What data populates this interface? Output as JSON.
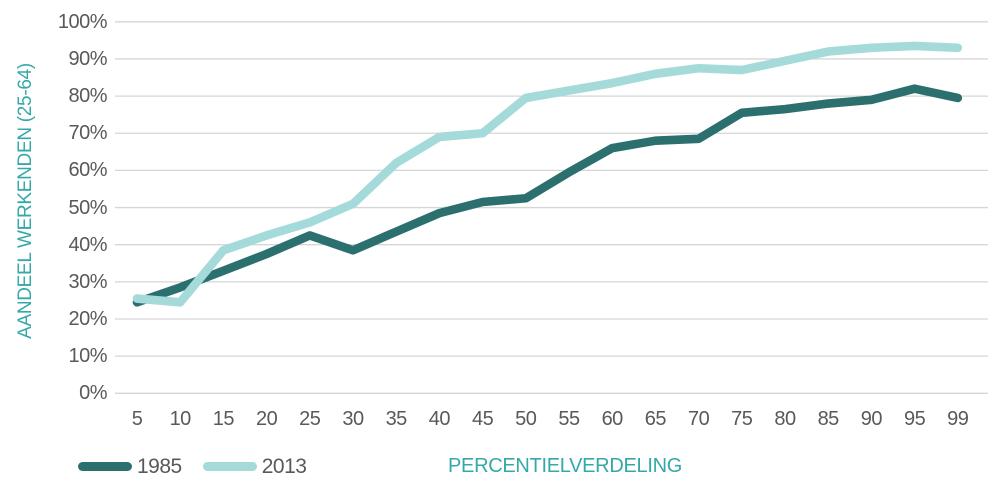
{
  "chart_data": {
    "type": "line",
    "title": "",
    "xlabel": "PERCENTIELVERDELING",
    "ylabel": "AANDEEL WERKENDEN (25-64)",
    "categories": [
      "5",
      "10",
      "15",
      "20",
      "25",
      "30",
      "35",
      "40",
      "45",
      "50",
      "55",
      "60",
      "65",
      "70",
      "75",
      "80",
      "85",
      "90",
      "95",
      "99"
    ],
    "series": [
      {
        "name": "1985",
        "color": "#2c6f6f",
        "values": [
          24.5,
          28.5,
          33,
          37.5,
          42.5,
          38.5,
          43.5,
          48.5,
          51.5,
          52.5,
          59.5,
          66,
          68,
          68.5,
          75.5,
          76.5,
          78,
          79,
          82,
          79.5
        ]
      },
      {
        "name": "2013",
        "color": "#a4dad9",
        "values": [
          25.5,
          24.5,
          38.5,
          42.5,
          46,
          51,
          62,
          69,
          70,
          79.5,
          81.5,
          83.5,
          86,
          87.5,
          87,
          89.5,
          92,
          93,
          93.5,
          93
        ]
      }
    ],
    "y_tick_labels": [
      "100%",
      "90%",
      "80%",
      "70%",
      "60%",
      "50%",
      "40%",
      "30%",
      "20%",
      "10%",
      "0%"
    ],
    "ylim": [
      0,
      100
    ],
    "y_step": 10,
    "grid": "horizontal-only",
    "legend_position": "bottom-left",
    "legend_items": [
      "1985",
      "2013"
    ]
  },
  "colors": {
    "background": "#ffffff",
    "gridline": "#d6d6d6",
    "axis_text": "#58595b",
    "accent_teal": "#35a9a8",
    "series_1985": "#2c6f6f",
    "series_2013": "#a4dad9"
  }
}
